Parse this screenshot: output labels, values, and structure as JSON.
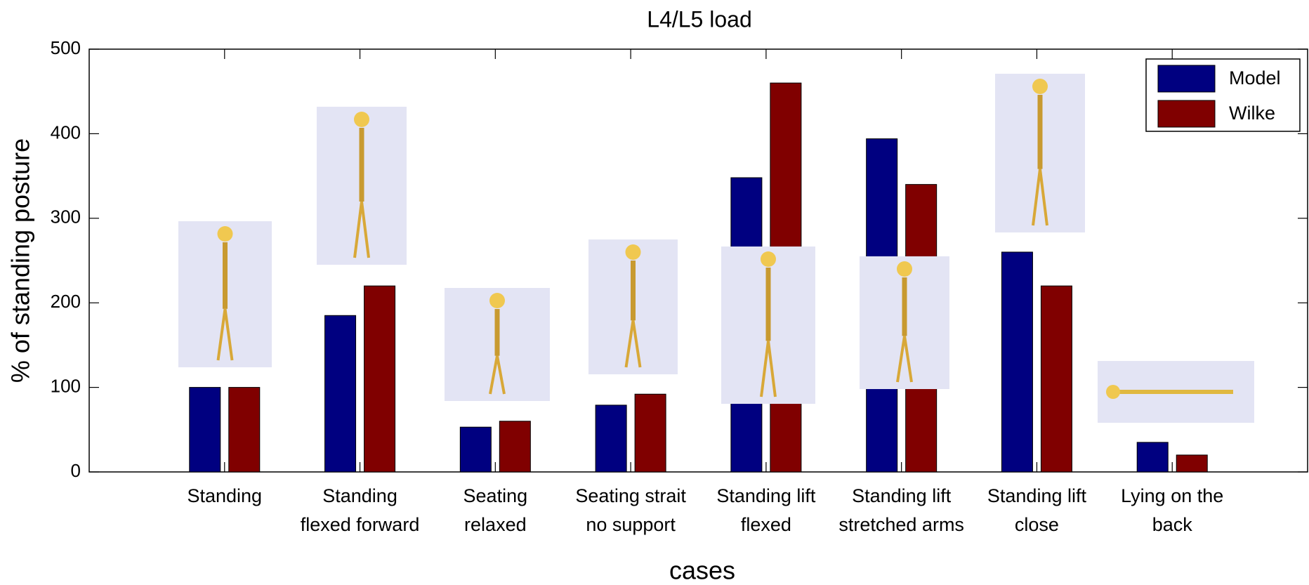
{
  "chart_data": {
    "type": "bar",
    "title": "L4/L5 load",
    "xlabel": "cases",
    "ylabel": "% of standing posture",
    "categories": [
      "Standing",
      "Standing\nflexed forward",
      "Seating\nrelaxed",
      "Seating strait\nno support",
      "Standing lift\nflexed",
      "Standing lift\nstretched arms",
      "Standing lift\nclose",
      "Lying on the\nback"
    ],
    "series": [
      {
        "name": "Model",
        "color": "#000080",
        "values": [
          100,
          185,
          53,
          79,
          348,
          394,
          260,
          35
        ]
      },
      {
        "name": "Wilke",
        "color": "#800000",
        "values": [
          100,
          220,
          60,
          92,
          460,
          340,
          220,
          20
        ]
      }
    ],
    "ylim": [
      0,
      500
    ],
    "yticks": [
      0,
      100,
      200,
      300,
      400,
      500
    ],
    "legend": "upper right"
  }
}
